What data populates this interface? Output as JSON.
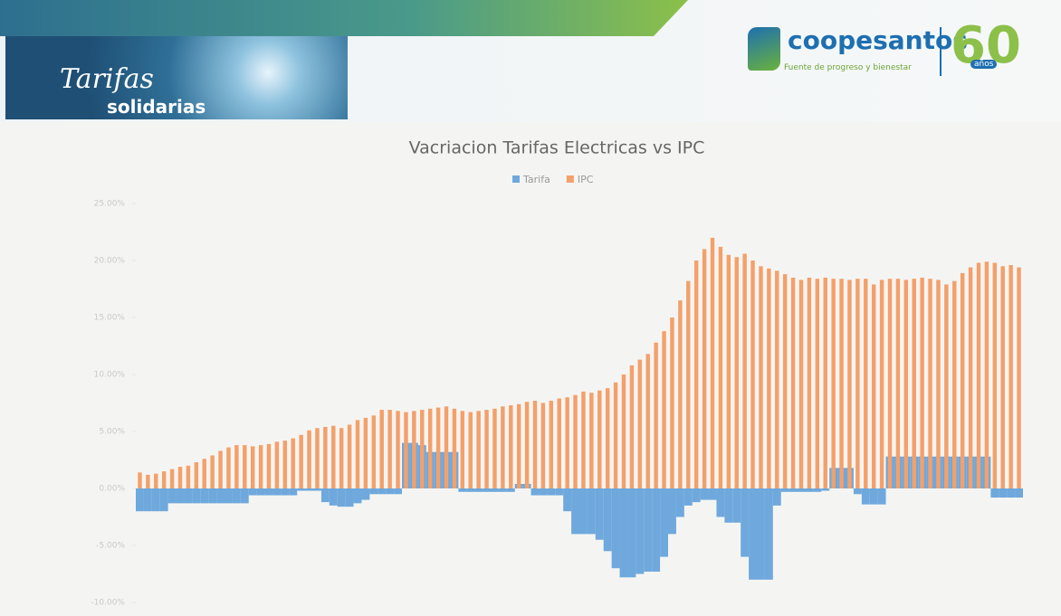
{
  "header": {
    "brand_title": "Tarifas",
    "brand_subtitle": "solidarias",
    "company": "coopesantos",
    "slogan": "Fuente de progreso y bienestar",
    "anniversary": "60",
    "anniversary_unit": "años"
  },
  "chart_data": {
    "type": "bar",
    "title": "Vacriacion Tarifas Electricas vs IPC",
    "categories": [
      null,
      null,
      null,
      null,
      null,
      null,
      null,
      null,
      null,
      null,
      null,
      null,
      null,
      null,
      null,
      null,
      null,
      null,
      null,
      null,
      null,
      null,
      null,
      null,
      null,
      null,
      null,
      null,
      null,
      null,
      null,
      null,
      null,
      null,
      null,
      null,
      null,
      null,
      null,
      null,
      null,
      null,
      null,
      null,
      null,
      null,
      null,
      null,
      null,
      null,
      null,
      null,
      null,
      null,
      null,
      null,
      null,
      null,
      null,
      null,
      null,
      null,
      null,
      null,
      null,
      null,
      null,
      null,
      null,
      null,
      null,
      null,
      null,
      null,
      null,
      null,
      null,
      null,
      null,
      null,
      null,
      null,
      null,
      null,
      null,
      null,
      null,
      null,
      null,
      null,
      null,
      null,
      null,
      null,
      null,
      null,
      null,
      null,
      null,
      null,
      null,
      null,
      null,
      null,
      null,
      null,
      null,
      null,
      null,
      null
    ],
    "series": [
      {
        "name": "Tarifa",
        "color": "#6fa8dc",
        "values": [
          -2.0,
          -2.0,
          -2.0,
          -2.0,
          -1.3,
          -1.3,
          -1.3,
          -1.3,
          -1.3,
          -1.3,
          -1.3,
          -1.3,
          -1.3,
          -1.3,
          -0.6,
          -0.6,
          -0.6,
          -0.6,
          -0.6,
          -0.6,
          -0.2,
          -0.2,
          -0.2,
          -1.2,
          -1.5,
          -1.6,
          -1.6,
          -1.3,
          -1.0,
          -0.5,
          -0.5,
          -0.5,
          -0.5,
          4.0,
          4.0,
          3.8,
          3.2,
          3.2,
          3.2,
          3.2,
          -0.3,
          -0.3,
          -0.3,
          -0.3,
          -0.3,
          -0.3,
          -0.3,
          0.4,
          0.4,
          -0.6,
          -0.6,
          -0.6,
          -0.6,
          -2.0,
          -4.0,
          -4.0,
          -4.0,
          -4.5,
          -5.5,
          -7.0,
          -7.8,
          -7.8,
          -7.5,
          -7.3,
          -7.3,
          -6.0,
          -4.0,
          -2.5,
          -1.5,
          -1.2,
          -1.0,
          -1.0,
          -2.5,
          -3.0,
          -3.0,
          -6.0,
          -8.0,
          -8.0,
          -8.0,
          -1.5,
          -0.3,
          -0.3,
          -0.3,
          -0.3,
          -0.3,
          -0.2,
          1.8,
          1.8,
          1.8,
          -0.5,
          -1.4,
          -1.4,
          -1.4,
          2.8,
          2.8,
          2.8,
          2.8,
          2.8,
          2.8,
          2.8,
          2.8,
          2.8,
          2.8,
          2.8,
          2.8,
          2.8,
          -0.8,
          -0.8,
          -0.8,
          -0.8
        ]
      },
      {
        "name": "IPC",
        "color": "#f4a06a",
        "values": [
          1.4,
          1.2,
          1.3,
          1.5,
          1.7,
          1.9,
          2.0,
          2.3,
          2.6,
          2.9,
          3.3,
          3.6,
          3.8,
          3.8,
          3.7,
          3.8,
          3.9,
          4.1,
          4.2,
          4.4,
          4.7,
          5.1,
          5.3,
          5.4,
          5.5,
          5.3,
          5.6,
          6.0,
          6.2,
          6.4,
          6.9,
          6.9,
          6.8,
          6.7,
          6.8,
          6.9,
          7.0,
          7.1,
          7.2,
          7.0,
          6.8,
          6.7,
          6.8,
          6.9,
          7.0,
          7.2,
          7.3,
          7.4,
          7.6,
          7.7,
          7.5,
          7.7,
          7.9,
          8.0,
          8.2,
          8.5,
          8.4,
          8.6,
          8.8,
          9.3,
          10.0,
          10.8,
          11.3,
          11.8,
          12.8,
          13.8,
          15.0,
          16.5,
          18.2,
          20.0,
          21.0,
          22.0,
          21.2,
          20.5,
          20.3,
          20.6,
          20.0,
          19.5,
          19.3,
          19.1,
          18.8,
          18.5,
          18.3,
          18.5,
          18.4,
          18.5,
          18.4,
          18.4,
          18.3,
          18.4,
          18.4,
          17.9,
          18.3,
          18.4,
          18.4,
          18.3,
          18.4,
          18.5,
          18.4,
          18.3,
          17.9,
          18.2,
          18.9,
          19.4,
          19.8,
          19.9,
          19.8,
          19.5,
          19.6,
          19.4
        ]
      }
    ],
    "ylim": [
      -10,
      25
    ],
    "yticks": [
      {
        "value": -10,
        "label": "-10.00%"
      },
      {
        "value": -5,
        "label": "-5.00%"
      },
      {
        "value": 0,
        "label": "0.00%"
      },
      {
        "value": 5,
        "label": "5.00%"
      },
      {
        "value": 10,
        "label": "10.00%"
      },
      {
        "value": 15,
        "label": "15.00%"
      },
      {
        "value": 20,
        "label": "20.00%"
      },
      {
        "value": 25,
        "label": "25.00%"
      }
    ],
    "grid": false,
    "legend": "top"
  }
}
